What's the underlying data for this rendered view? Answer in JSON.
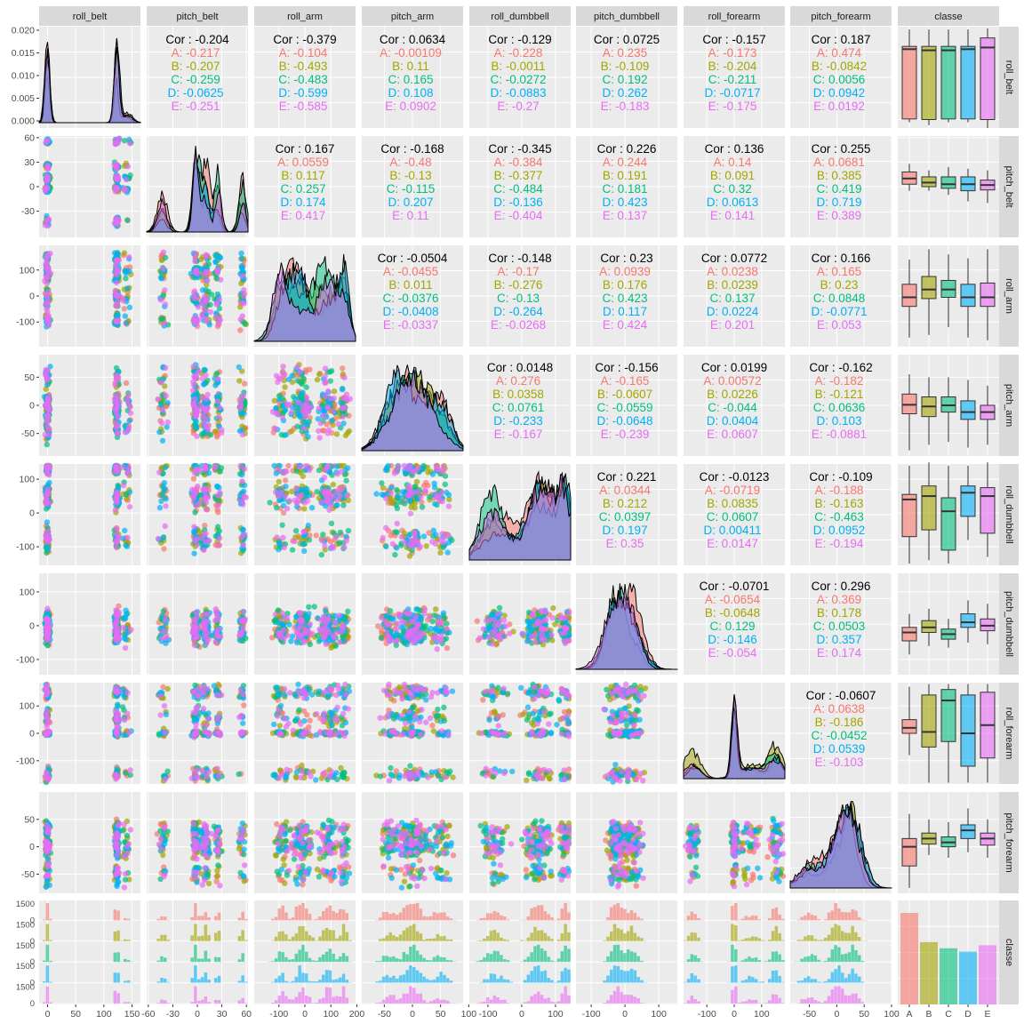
{
  "chart_data": {
    "type": "scatter-matrix",
    "variables": [
      "roll_belt",
      "pitch_belt",
      "roll_arm",
      "pitch_arm",
      "roll_dumbbell",
      "pitch_dumbbell",
      "roll_forearm",
      "pitch_forearm"
    ],
    "group_variable": "classe",
    "classes": [
      "A",
      "B",
      "C",
      "D",
      "E"
    ],
    "class_colors": [
      "#F8766D",
      "#A3A500",
      "#00BF7D",
      "#00B0F6",
      "#E76BF3"
    ],
    "ranges": [
      [
        -15,
        165
      ],
      [
        -62,
        62
      ],
      [
        -195,
        195
      ],
      [
        -90,
        90
      ],
      [
        -155,
        145
      ],
      [
        -145,
        155
      ],
      [
        -185,
        185
      ],
      [
        -85,
        100
      ]
    ],
    "ticks": [
      {
        "values": [
          0,
          50,
          100,
          150
        ],
        "labels": [
          "0",
          "50",
          "100",
          "150"
        ]
      },
      {
        "values": [
          -60,
          -30,
          0,
          30,
          60
        ],
        "labels": [
          "-60",
          "-30",
          "0",
          "30",
          "60"
        ]
      },
      {
        "values": [
          -100,
          0,
          100,
          200
        ],
        "labels": [
          "-100",
          "0",
          "100",
          "200"
        ]
      },
      {
        "values": [
          -50,
          0,
          50,
          100
        ],
        "labels": [
          "-50",
          "0",
          "50",
          "100"
        ]
      },
      {
        "values": [
          -100,
          0,
          100
        ],
        "labels": [
          "-100",
          "0",
          "100"
        ]
      },
      {
        "values": [
          -100,
          0,
          100
        ],
        "labels": [
          "-100",
          "0",
          "100"
        ]
      },
      {
        "values": [
          -100,
          0,
          100
        ],
        "labels": [
          "-100",
          "0",
          "100"
        ]
      },
      {
        "values": [
          -50,
          0,
          50,
          100
        ],
        "labels": [
          "-50",
          "0",
          "50",
          "100"
        ]
      }
    ],
    "y_ticks": [
      {
        "values": [
          0,
          0.005,
          0.01,
          0.015,
          0.02
        ],
        "labels": [
          "0.000",
          "0.005",
          "0.010",
          "0.015",
          "0.020"
        ]
      },
      {
        "values": [
          -30,
          0,
          30,
          60
        ],
        "labels": [
          "-30",
          "0",
          "30",
          "60"
        ]
      },
      {
        "values": [
          -100,
          0,
          100
        ],
        "labels": [
          "-100",
          "0",
          "100"
        ]
      },
      {
        "values": [
          -50,
          0,
          50
        ],
        "labels": [
          "-50",
          "0",
          "50"
        ]
      },
      {
        "values": [
          -100,
          0,
          100
        ],
        "labels": [
          "-100",
          "0",
          "100"
        ]
      },
      {
        "values": [
          -100,
          0,
          100
        ],
        "labels": [
          "-100",
          "0",
          "100"
        ]
      },
      {
        "values": [
          -100,
          0,
          100
        ],
        "labels": [
          "-100",
          "0",
          "100"
        ]
      },
      {
        "values": [
          -50,
          0,
          50
        ],
        "labels": [
          "-50",
          "0",
          "50"
        ]
      }
    ],
    "class_column_label": "classe",
    "class_row_label": "classe",
    "count_tick_labels": [
      "1500",
      "1000",
      "500",
      "0"
    ],
    "correlations": [
      {
        "row": 0,
        "col": 1,
        "overall": "Cor : -0.204",
        "groups": [
          "A: -0.217",
          "B: -0.207",
          "C: -0.259",
          "D: -0.0625",
          "E: -0.251"
        ]
      },
      {
        "row": 0,
        "col": 2,
        "overall": "Cor : -0.379",
        "groups": [
          "A: -0.104",
          "B: -0.493",
          "C: -0.483",
          "D: -0.599",
          "E: -0.585"
        ]
      },
      {
        "row": 0,
        "col": 3,
        "overall": "Cor : 0.0634",
        "groups": [
          "A: -0.00109",
          "B: 0.11",
          "C: 0.165",
          "D: 0.108",
          "E: 0.0902"
        ]
      },
      {
        "row": 0,
        "col": 4,
        "overall": "Cor : -0.129",
        "groups": [
          "A: -0.228",
          "B: -0.0011",
          "C: -0.0272",
          "D: -0.0883",
          "E: -0.27"
        ]
      },
      {
        "row": 0,
        "col": 5,
        "overall": "Cor : 0.0725",
        "groups": [
          "A: 0.235",
          "B: -0.109",
          "C: 0.192",
          "D: 0.262",
          "E: -0.183"
        ]
      },
      {
        "row": 0,
        "col": 6,
        "overall": "Cor : -0.157",
        "groups": [
          "A: -0.173",
          "B: -0.204",
          "C: -0.211",
          "D: -0.0717",
          "E: -0.175"
        ]
      },
      {
        "row": 0,
        "col": 7,
        "overall": "Cor : 0.187",
        "groups": [
          "A: 0.474",
          "B: -0.0842",
          "C: 0.0056",
          "D: 0.0942",
          "E: 0.0192"
        ]
      },
      {
        "row": 1,
        "col": 2,
        "overall": "Cor : 0.167",
        "groups": [
          "A: 0.0559",
          "B: 0.117",
          "C: 0.257",
          "D: 0.174",
          "E: 0.417"
        ]
      },
      {
        "row": 1,
        "col": 3,
        "overall": "Cor : -0.168",
        "groups": [
          "A: -0.48",
          "B: -0.13",
          "C: -0.115",
          "D: 0.207",
          "E: 0.11"
        ]
      },
      {
        "row": 1,
        "col": 4,
        "overall": "Cor : -0.345",
        "groups": [
          "A: -0.384",
          "B: -0.377",
          "C: -0.484",
          "D: -0.136",
          "E: -0.404"
        ]
      },
      {
        "row": 1,
        "col": 5,
        "overall": "Cor : 0.226",
        "groups": [
          "A: 0.244",
          "B: 0.191",
          "C: 0.181",
          "D: 0.423",
          "E: 0.137"
        ]
      },
      {
        "row": 1,
        "col": 6,
        "overall": "Cor : 0.136",
        "groups": [
          "A: 0.14",
          "B: 0.091",
          "C: 0.32",
          "D: 0.0613",
          "E: 0.141"
        ]
      },
      {
        "row": 1,
        "col": 7,
        "overall": "Cor : 0.255",
        "groups": [
          "A: 0.0681",
          "B: 0.385",
          "C: 0.419",
          "D: 0.719",
          "E: 0.389"
        ]
      },
      {
        "row": 2,
        "col": 3,
        "overall": "Cor : -0.0504",
        "groups": [
          "A: -0.0455",
          "B: 0.011",
          "C: -0.0376",
          "D: -0.0408",
          "E: -0.0337"
        ]
      },
      {
        "row": 2,
        "col": 4,
        "overall": "Cor : -0.148",
        "groups": [
          "A: -0.17",
          "B: -0.276",
          "C: -0.13",
          "D: -0.264",
          "E: -0.0268"
        ]
      },
      {
        "row": 2,
        "col": 5,
        "overall": "Cor : 0.23",
        "groups": [
          "A: 0.0939",
          "B: 0.176",
          "C: 0.423",
          "D: 0.117",
          "E: 0.424"
        ]
      },
      {
        "row": 2,
        "col": 6,
        "overall": "Cor : 0.0772",
        "groups": [
          "A: 0.0238",
          "B: 0.0239",
          "C: 0.137",
          "D: 0.0224",
          "E: 0.201"
        ]
      },
      {
        "row": 2,
        "col": 7,
        "overall": "Cor : 0.166",
        "groups": [
          "A: 0.165",
          "B: 0.23",
          "C: 0.0848",
          "D: -0.0771",
          "E: 0.053"
        ]
      },
      {
        "row": 3,
        "col": 4,
        "overall": "Cor : 0.0148",
        "groups": [
          "A: 0.276",
          "B: 0.0358",
          "C: 0.0761",
          "D: -0.233",
          "E: -0.167"
        ]
      },
      {
        "row": 3,
        "col": 5,
        "overall": "Cor : -0.156",
        "groups": [
          "A: -0.165",
          "B: -0.0607",
          "C: -0.0559",
          "D: -0.0648",
          "E: -0.239"
        ]
      },
      {
        "row": 3,
        "col": 6,
        "overall": "Cor : 0.0199",
        "groups": [
          "A: 0.00572",
          "B: 0.0226",
          "C: -0.044",
          "D: 0.0404",
          "E: 0.0607"
        ]
      },
      {
        "row": 3,
        "col": 7,
        "overall": "Cor : -0.162",
        "groups": [
          "A: -0.182",
          "B: -0.121",
          "C: 0.0636",
          "D: 0.103",
          "E: -0.0881"
        ]
      },
      {
        "row": 4,
        "col": 5,
        "overall": "Cor : 0.221",
        "groups": [
          "A: 0.0344",
          "B: 0.212",
          "C: 0.0397",
          "D: 0.197",
          "E: 0.35"
        ]
      },
      {
        "row": 4,
        "col": 6,
        "overall": "Cor : -0.0123",
        "groups": [
          "A: -0.0719",
          "B: 0.0835",
          "C: 0.0607",
          "D: 0.00411",
          "E: 0.0147"
        ]
      },
      {
        "row": 4,
        "col": 7,
        "overall": "Cor : -0.109",
        "groups": [
          "A: -0.188",
          "B: -0.163",
          "C: -0.463",
          "D: 0.0952",
          "E: -0.194"
        ]
      },
      {
        "row": 5,
        "col": 6,
        "overall": "Cor : -0.0701",
        "groups": [
          "A: -0.0654",
          "B: -0.0648",
          "C: 0.129",
          "D: -0.146",
          "E: -0.054"
        ]
      },
      {
        "row": 5,
        "col": 7,
        "overall": "Cor : 0.296",
        "groups": [
          "A: 0.369",
          "B: 0.178",
          "C: 0.0503",
          "D: 0.357",
          "E: 0.174"
        ]
      },
      {
        "row": 6,
        "col": 7,
        "overall": "Cor : -0.0607",
        "groups": [
          "A: 0.0638",
          "B: -0.186",
          "C: -0.0452",
          "D: 0.0539",
          "E: -0.103"
        ]
      }
    ],
    "class_counts": {
      "categories": [
        "A",
        "B",
        "C",
        "D",
        "E"
      ],
      "values": [
        5580,
        3797,
        3422,
        3216,
        3607
      ]
    },
    "boxplots": [
      [
        [
          -5,
          1,
          125,
          130,
          160
        ],
        [
          -10,
          0,
          123,
          130,
          160
        ],
        [
          -5,
          1,
          123,
          130,
          160
        ],
        [
          -5,
          1,
          125,
          130,
          160
        ],
        [
          -15,
          0,
          128,
          145,
          162
        ]
      ],
      [
        [
          -5,
          3,
          10,
          18,
          28
        ],
        [
          -5,
          0,
          5,
          12,
          20
        ],
        [
          -10,
          -2,
          3,
          12,
          24
        ],
        [
          -18,
          -5,
          3,
          12,
          22
        ],
        [
          -20,
          -4,
          2,
          8,
          20
        ]
      ],
      [
        [
          -160,
          -40,
          -5,
          45,
          140
        ],
        [
          -150,
          -10,
          25,
          75,
          180
        ],
        [
          -120,
          -5,
          25,
          60,
          160
        ],
        [
          -160,
          -40,
          -5,
          45,
          145
        ],
        [
          -170,
          -40,
          -5,
          50,
          180
        ]
      ],
      [
        [
          -80,
          -15,
          1,
          20,
          55
        ],
        [
          -70,
          -20,
          -2,
          15,
          50
        ],
        [
          -65,
          -12,
          0,
          15,
          50
        ],
        [
          -75,
          -25,
          -12,
          8,
          45
        ],
        [
          -70,
          -25,
          -12,
          0,
          35
        ]
      ],
      [
        [
          -150,
          -70,
          40,
          55,
          140
        ],
        [
          -140,
          -50,
          50,
          80,
          150
        ],
        [
          -150,
          -110,
          5,
          45,
          140
        ],
        [
          -80,
          -10,
          60,
          80,
          140
        ],
        [
          -130,
          -60,
          50,
          75,
          150
        ]
      ],
      [
        [
          -85,
          -45,
          -20,
          -5,
          35
        ],
        [
          -60,
          -20,
          -5,
          15,
          50
        ],
        [
          -65,
          -40,
          -25,
          -10,
          20
        ],
        [
          -50,
          -5,
          10,
          35,
          75
        ],
        [
          -55,
          -15,
          0,
          20,
          65
        ]
      ],
      [
        [
          -80,
          0,
          20,
          50,
          170
        ],
        [
          -180,
          -50,
          5,
          140,
          180
        ],
        [
          -180,
          -30,
          120,
          160,
          180
        ],
        [
          -180,
          -120,
          0,
          140,
          180
        ],
        [
          -180,
          -90,
          30,
          150,
          180
        ]
      ],
      [
        [
          -75,
          -35,
          0,
          15,
          60
        ],
        [
          -15,
          5,
          15,
          25,
          50
        ],
        [
          -20,
          0,
          8,
          18,
          45
        ],
        [
          -10,
          15,
          30,
          40,
          70
        ],
        [
          -20,
          3,
          15,
          25,
          50
        ]
      ]
    ]
  }
}
